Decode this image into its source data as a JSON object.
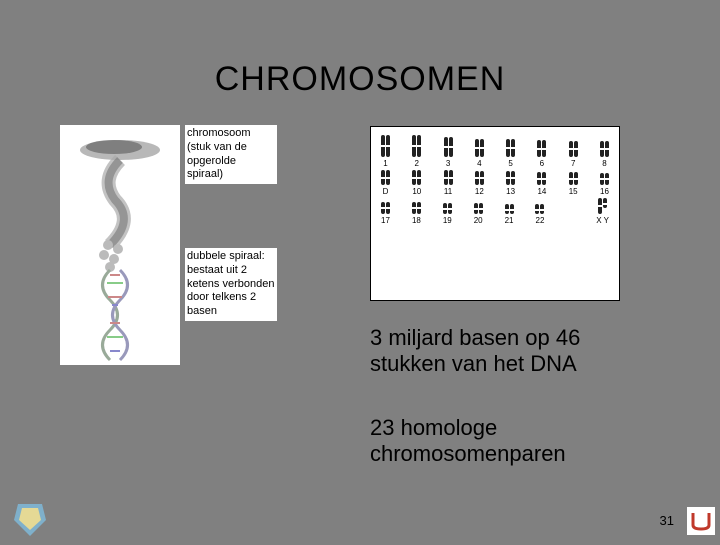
{
  "title": "CHROMOSOMEN",
  "labels": {
    "chromosoom": "chromosoom (stuk van de opgerolde spiraal)",
    "dubbele_spiraal": "dubbele spiraal: bestaat uit 2 ketens verbonden door telkens 2 basen"
  },
  "body": {
    "line1": "3 miljard basen op 46 stukken van het DNA",
    "line2": "23 homologe chromosomenparen"
  },
  "page_number": "31",
  "karyotype": {
    "rows": [
      {
        "labels": [
          "1",
          "2",
          "3",
          "4",
          "5",
          "6",
          "7",
          "8"
        ],
        "heights": [
          22,
          22,
          20,
          18,
          18,
          17,
          16,
          16
        ]
      },
      {
        "labels": [
          "D",
          "10",
          "11",
          "12",
          "13",
          "14",
          "15",
          "16"
        ],
        "heights": [
          15,
          15,
          15,
          14,
          14,
          13,
          13,
          12
        ]
      },
      {
        "labels": [
          "17",
          "18",
          "19",
          "20",
          "21",
          "22",
          "",
          "X  Y"
        ],
        "heights": [
          12,
          12,
          11,
          11,
          10,
          10,
          0,
          16
        ]
      }
    ],
    "colors": {
      "chrom": "#222222",
      "text": "#000000",
      "bg": "#ffffff"
    }
  },
  "colors": {
    "page_bg": "#808080",
    "text": "#000000",
    "panel_bg": "#ffffff"
  }
}
